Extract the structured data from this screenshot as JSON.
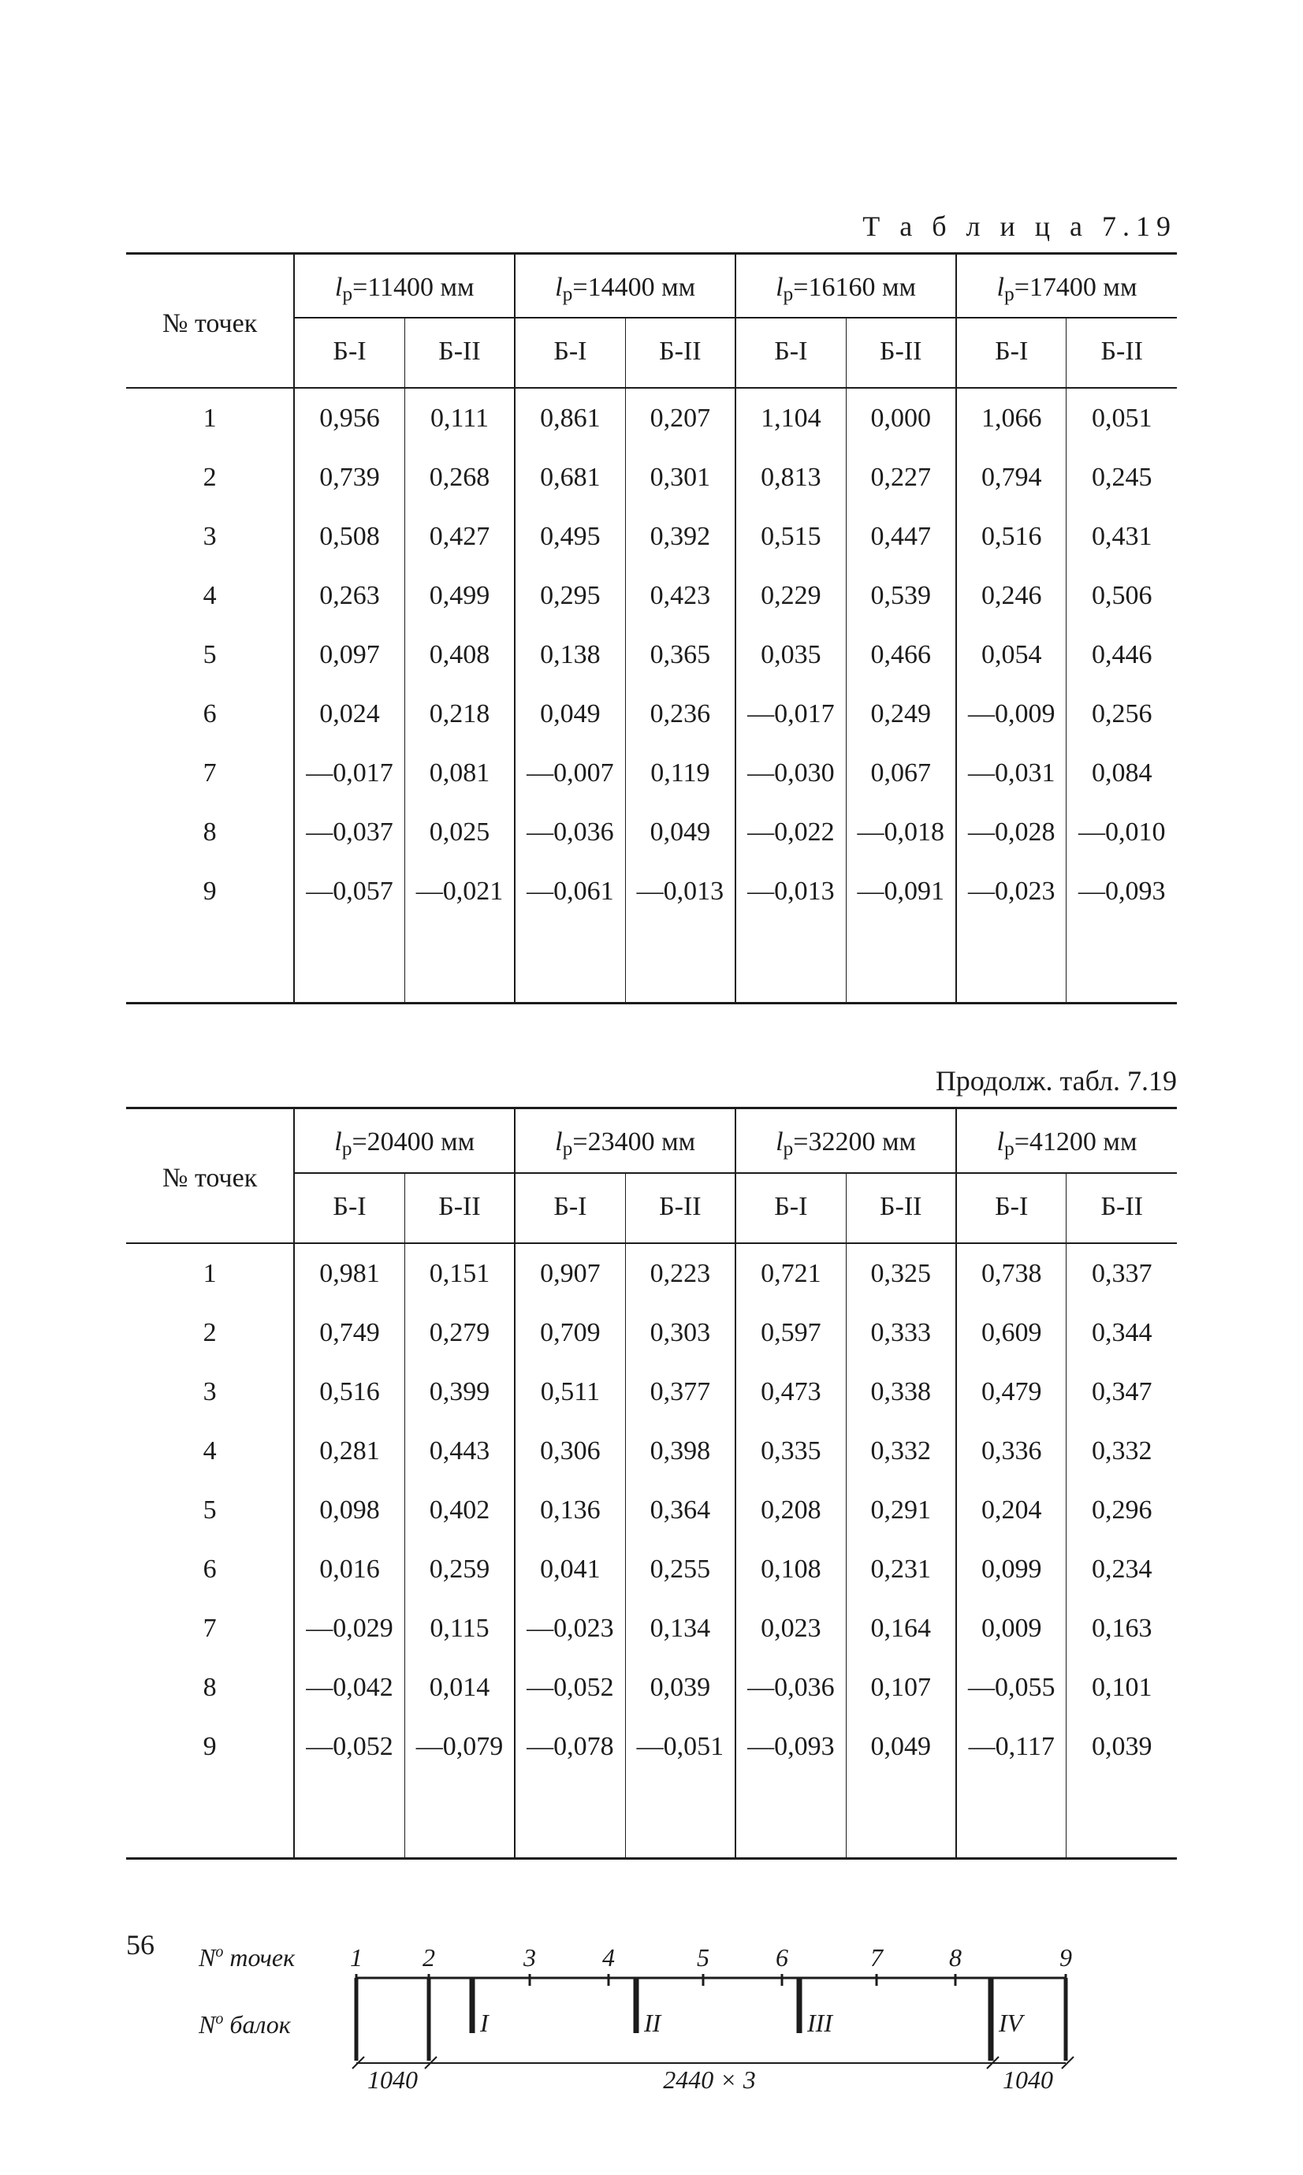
{
  "table1": {
    "title_spaced": "Т а б л и ц а   7.19",
    "row_header": "№ точек",
    "header_prefix": "l",
    "header_sub": "р",
    "header_eq": "=",
    "header_unit": " мм",
    "lp_values": [
      "11400",
      "14400",
      "16160",
      "17400"
    ],
    "subcols": [
      "Б-I",
      "Б-II"
    ],
    "row_labels": [
      "1",
      "2",
      "3",
      "4",
      "5",
      "6",
      "7",
      "8",
      "9"
    ],
    "rows": [
      [
        "0,956",
        "0,111",
        "0,861",
        "0,207",
        "1,104",
        "0,000",
        "1,066",
        "0,051"
      ],
      [
        "0,739",
        "0,268",
        "0,681",
        "0,301",
        "0,813",
        "0,227",
        "0,794",
        "0,245"
      ],
      [
        "0,508",
        "0,427",
        "0,495",
        "0,392",
        "0,515",
        "0,447",
        "0,516",
        "0,431"
      ],
      [
        "0,263",
        "0,499",
        "0,295",
        "0,423",
        "0,229",
        "0,539",
        "0,246",
        "0,506"
      ],
      [
        "0,097",
        "0,408",
        "0,138",
        "0,365",
        "0,035",
        "0,466",
        "0,054",
        "0,446"
      ],
      [
        "0,024",
        "0,218",
        "0,049",
        "0,236",
        "—0,017",
        "0,249",
        "—0,009",
        "0,256"
      ],
      [
        "—0,017",
        "0,081",
        "—0,007",
        "0,119",
        "—0,030",
        "0,067",
        "—0,031",
        "0,084"
      ],
      [
        "—0,037",
        "0,025",
        "—0,036",
        "0,049",
        "—0,022",
        "—0,018",
        "—0,028",
        "—0,010"
      ],
      [
        "—0,057",
        "—0,021",
        "—0,061",
        "—0,013",
        "—0,013",
        "—0,091",
        "—0,023",
        "—0,093"
      ]
    ]
  },
  "table2": {
    "title": "Продолж. табл. 7.19",
    "row_header": "№ точек",
    "header_prefix": "l",
    "header_sub": "р",
    "header_eq": "=",
    "header_unit": "  мм",
    "lp_values": [
      "20400",
      "23400",
      "32200",
      "41200"
    ],
    "subcols": [
      "Б-I",
      "Б-II"
    ],
    "row_labels": [
      "1",
      "2",
      "3",
      "4",
      "5",
      "6",
      "7",
      "8",
      "9"
    ],
    "rows": [
      [
        "0,981",
        "0,151",
        "0,907",
        "0,223",
        "0,721",
        "0,325",
        "0,738",
        "0,337"
      ],
      [
        "0,749",
        "0,279",
        "0,709",
        "0,303",
        "0,597",
        "0,333",
        "0,609",
        "0,344"
      ],
      [
        "0,516",
        "0,399",
        "0,511",
        "0,377",
        "0,473",
        "0,338",
        "0,479",
        "0,347"
      ],
      [
        "0,281",
        "0,443",
        "0,306",
        "0,398",
        "0,335",
        "0,332",
        "0,336",
        "0,332"
      ],
      [
        "0,098",
        "0,402",
        "0,136",
        "0,364",
        "0,208",
        "0,291",
        "0,204",
        "0,296"
      ],
      [
        "0,016",
        "0,259",
        "0,041",
        "0,255",
        "0,108",
        "0,231",
        "0,099",
        "0,234"
      ],
      [
        "—0,029",
        "0,115",
        "—0,023",
        "0,134",
        "0,023",
        "0,164",
        "0,009",
        "0,163"
      ],
      [
        "—0,042",
        "0,014",
        "—0,052",
        "0,039",
        "—0,036",
        "0,107",
        "—0,055",
        "0,101"
      ],
      [
        "—0,052",
        "—0,079",
        "—0,078",
        "—0,051",
        "—0,093",
        "0,049",
        "—0,117",
        "0,039"
      ]
    ]
  },
  "diagram": {
    "label_points": "№ точек",
    "label_beams": "№ балок",
    "point_nums": [
      "1",
      "2",
      "3",
      "4",
      "5",
      "6",
      "7",
      "8",
      "9"
    ],
    "beam_nums": [
      "I",
      "II",
      "III",
      "IV"
    ],
    "dim_left": "1040",
    "dim_mid": "2440 × 3",
    "dim_right": "1040"
  },
  "page_number": "56"
}
